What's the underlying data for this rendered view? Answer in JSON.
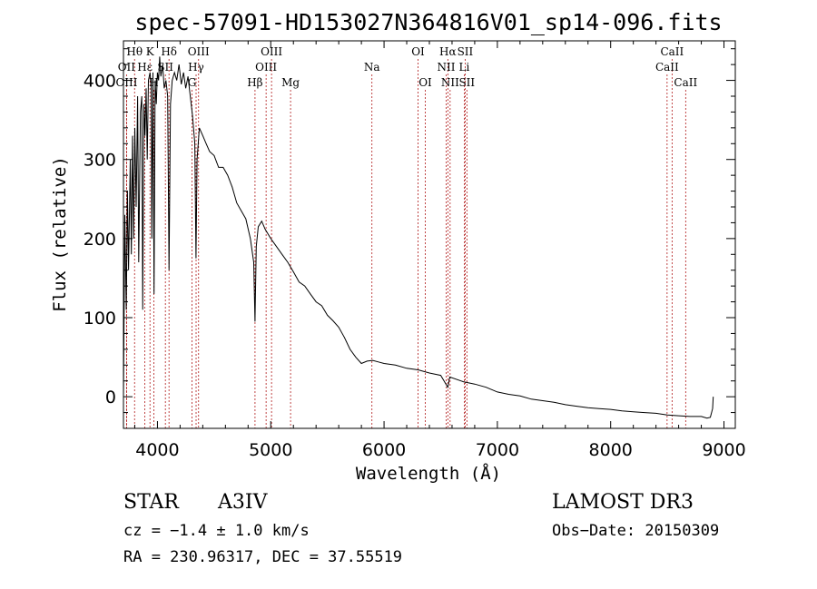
{
  "chart_data": {
    "type": "line",
    "title": "spec-57091-HD153027N364816V01_sp14-096.fits",
    "xlabel": "Wavelength (Å)",
    "ylabel": "Flux (relative)",
    "xlim": [
      3700,
      9100
    ],
    "ylim": [
      -40,
      450
    ],
    "xticks": [
      4000,
      5000,
      6000,
      7000,
      8000,
      9000
    ],
    "yticks": [
      0,
      100,
      200,
      300,
      400
    ],
    "series": [
      {
        "name": "flux",
        "points": [
          [
            3700,
            0
          ],
          [
            3712,
            230
          ],
          [
            3725,
            110
          ],
          [
            3735,
            260
          ],
          [
            3745,
            160
          ],
          [
            3760,
            300
          ],
          [
            3770,
            180
          ],
          [
            3780,
            330
          ],
          [
            3790,
            200
          ],
          [
            3800,
            340
          ],
          [
            3812,
            240
          ],
          [
            3825,
            380
          ],
          [
            3835,
            170
          ],
          [
            3850,
            360
          ],
          [
            3862,
            380
          ],
          [
            3870,
            110
          ],
          [
            3880,
            370
          ],
          [
            3890,
            330
          ],
          [
            3900,
            390
          ],
          [
            3910,
            300
          ],
          [
            3920,
            400
          ],
          [
            3935,
            410
          ],
          [
            3945,
            390
          ],
          [
            3950,
            200
          ],
          [
            3960,
            410
          ],
          [
            3970,
            130
          ],
          [
            3980,
            400
          ],
          [
            3990,
            370
          ],
          [
            4000,
            410
          ],
          [
            4010,
            400
          ],
          [
            4020,
            430
          ],
          [
            4030,
            405
          ],
          [
            4045,
            420
          ],
          [
            4060,
            390
          ],
          [
            4075,
            400
          ],
          [
            4090,
            380
          ],
          [
            4102,
            160
          ],
          [
            4115,
            370
          ],
          [
            4130,
            400
          ],
          [
            4150,
            410
          ],
          [
            4170,
            400
          ],
          [
            4190,
            420
          ],
          [
            4210,
            395
          ],
          [
            4230,
            410
          ],
          [
            4250,
            390
          ],
          [
            4270,
            405
          ],
          [
            4290,
            380
          ],
          [
            4310,
            355
          ],
          [
            4330,
            320
          ],
          [
            4340,
            175
          ],
          [
            4350,
            300
          ],
          [
            4370,
            340
          ],
          [
            4400,
            330
          ],
          [
            4430,
            320
          ],
          [
            4460,
            310
          ],
          [
            4500,
            305
          ],
          [
            4540,
            290
          ],
          [
            4580,
            290
          ],
          [
            4620,
            280
          ],
          [
            4660,
            265
          ],
          [
            4700,
            245
          ],
          [
            4740,
            235
          ],
          [
            4780,
            225
          ],
          [
            4820,
            200
          ],
          [
            4850,
            170
          ],
          [
            4861,
            95
          ],
          [
            4872,
            190
          ],
          [
            4890,
            215
          ],
          [
            4920,
            222
          ],
          [
            4950,
            212
          ],
          [
            5000,
            200
          ],
          [
            5050,
            190
          ],
          [
            5100,
            180
          ],
          [
            5150,
            170
          ],
          [
            5200,
            158
          ],
          [
            5250,
            145
          ],
          [
            5300,
            140
          ],
          [
            5350,
            130
          ],
          [
            5400,
            120
          ],
          [
            5450,
            115
          ],
          [
            5500,
            103
          ],
          [
            5550,
            96
          ],
          [
            5600,
            88
          ],
          [
            5650,
            75
          ],
          [
            5700,
            60
          ],
          [
            5750,
            50
          ],
          [
            5800,
            42
          ],
          [
            5850,
            45
          ],
          [
            5900,
            46
          ],
          [
            5950,
            44
          ],
          [
            6000,
            42
          ],
          [
            6100,
            40
          ],
          [
            6200,
            36
          ],
          [
            6300,
            34
          ],
          [
            6400,
            30
          ],
          [
            6500,
            27
          ],
          [
            6563,
            12
          ],
          [
            6580,
            25
          ],
          [
            6700,
            19
          ],
          [
            6800,
            16
          ],
          [
            6900,
            12
          ],
          [
            7000,
            6
          ],
          [
            7100,
            3
          ],
          [
            7200,
            1
          ],
          [
            7300,
            -3
          ],
          [
            7400,
            -5
          ],
          [
            7500,
            -7
          ],
          [
            7600,
            -10
          ],
          [
            7700,
            -12
          ],
          [
            7800,
            -14
          ],
          [
            7900,
            -15
          ],
          [
            8000,
            -16
          ],
          [
            8100,
            -18
          ],
          [
            8200,
            -19
          ],
          [
            8300,
            -20
          ],
          [
            8400,
            -21
          ],
          [
            8500,
            -23
          ],
          [
            8600,
            -24
          ],
          [
            8700,
            -25
          ],
          [
            8800,
            -25
          ],
          [
            8850,
            -27
          ],
          [
            8880,
            -26
          ],
          [
            8900,
            -15
          ],
          [
            8905,
            0
          ]
        ]
      }
    ],
    "spectral_lines": [
      {
        "name": "Hθ",
        "wl": 3798,
        "row": 1
      },
      {
        "name": "OII",
        "wl": 3727,
        "row": 2
      },
      {
        "name": "OIII",
        "wl": 3728,
        "row": 3
      },
      {
        "name": "K",
        "wl": 3934,
        "row": 1
      },
      {
        "name": "Hε",
        "wl": 3889,
        "row": 2
      },
      {
        "name": "H",
        "wl": 3968,
        "row": 3
      },
      {
        "name": "Hδ",
        "wl": 4102,
        "row": 1
      },
      {
        "name": "SII",
        "wl": 4070,
        "row": 2
      },
      {
        "name": "OIII",
        "wl": 4363,
        "row": 1
      },
      {
        "name": "Hγ",
        "wl": 4341,
        "row": 2
      },
      {
        "name": "G",
        "wl": 4305,
        "row": 3
      },
      {
        "name": "Hβ",
        "wl": 4861,
        "row": 3
      },
      {
        "name": "OIII",
        "wl": 4959,
        "row": 2
      },
      {
        "name": "OIII",
        "wl": 5007,
        "row": 1
      },
      {
        "name": "Mg",
        "wl": 5175,
        "row": 3
      },
      {
        "name": "Na",
        "wl": 5893,
        "row": 2
      },
      {
        "name": "OI",
        "wl": 6300,
        "row": 1
      },
      {
        "name": "OI",
        "wl": 6364,
        "row": 3
      },
      {
        "name": "Hα",
        "wl": 6563,
        "row": 1
      },
      {
        "name": "NII",
        "wl": 6548,
        "row": 2
      },
      {
        "name": "NII",
        "wl": 6583,
        "row": 3
      },
      {
        "name": "SII",
        "wl": 6716,
        "row": 1
      },
      {
        "name": "Li",
        "wl": 6708,
        "row": 2
      },
      {
        "name": "SII",
        "wl": 6731,
        "row": 3
      },
      {
        "name": "CaII",
        "wl": 8542,
        "row": 1
      },
      {
        "name": "CaII",
        "wl": 8498,
        "row": 2
      },
      {
        "name": "CaII",
        "wl": 8662,
        "row": 3
      }
    ]
  },
  "info": {
    "obj_class": "STAR",
    "subclass": "A3IV",
    "survey": "LAMOST DR3",
    "cz": "cz = −1.4 ± 1.0 km/s",
    "obs_date": "Obs−Date: 20150309",
    "coords": "RA = 230.96317, DEC =  37.55519"
  }
}
